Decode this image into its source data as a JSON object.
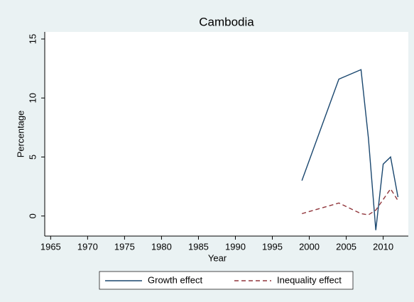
{
  "chart_data": {
    "type": "line",
    "title": "Cambodia",
    "x_label": "Year",
    "y_label": "Percentage",
    "x": [
      1999,
      2004,
      2007,
      2008,
      2009,
      2010,
      2011,
      2012
    ],
    "series": [
      {
        "name": "Growth effect",
        "color": "#1a476f",
        "dash": "solid",
        "values": [
          3.0,
          11.6,
          12.4,
          6.6,
          -1.2,
          4.4,
          5.0,
          1.6
        ]
      },
      {
        "name": "Inequality effect",
        "color": "#90353b",
        "dash": "dashed",
        "values": [
          0.2,
          1.1,
          0.2,
          0.1,
          0.5,
          1.4,
          2.3,
          1.3
        ]
      }
    ],
    "xlim": [
      1964.2,
      2013.4
    ],
    "xticks": [
      1965,
      1970,
      1975,
      1980,
      1985,
      1990,
      1995,
      2000,
      2005,
      2010
    ],
    "ylim": [
      -1.7,
      15.6
    ],
    "yticks": [
      0,
      5,
      10,
      15
    ],
    "grid": false,
    "legend": "bottom"
  }
}
